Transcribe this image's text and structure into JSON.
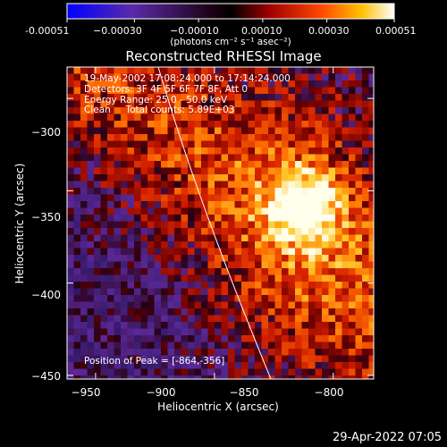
{
  "chart_data": {
    "type": "heatmap",
    "title": "Reconstructed RHESSI Image",
    "xlabel": "Heliocentric X (arcsec)",
    "ylabel": "Heliocentric Y (arcsec)",
    "xlim": [
      -962,
      -833
    ],
    "ylim": [
      -452,
      -283
    ],
    "x_ticks": [
      -950,
      -900,
      -850,
      -800
    ],
    "x_tick_labels": [
      "−950",
      "−900",
      "−850",
      "−800"
    ],
    "y_ticks": [
      -300,
      -350,
      -400,
      -450
    ],
    "y_tick_labels": [
      "−300",
      "−350",
      "−400",
      "−450"
    ],
    "colorbar": {
      "range": [
        -0.00051,
        0.00051
      ],
      "tick_labels": [
        "-0.00051",
        "−0.00030",
        "−0.00010",
        "0.00010",
        "0.00030",
        "0.00051"
      ],
      "unit_label": "(photons cm⁻² s⁻¹ asec⁻²)"
    },
    "annotations": {
      "time_range": "19-May-2002 17:08:24.000 to 17:14:24.000",
      "detectors": "Detectors: 3F 4F 5F 6F 7F 8F, Att 0",
      "energy": "Energy Range: 25.0 - 50.0 keV",
      "clean": "Clean     Total counts: 5.89E+03",
      "peak": "Position of Peak = [-864,-356]"
    },
    "peak_position": [
      -864,
      -356
    ]
  },
  "footer": {
    "date": "29-Apr-2022 07:05"
  }
}
